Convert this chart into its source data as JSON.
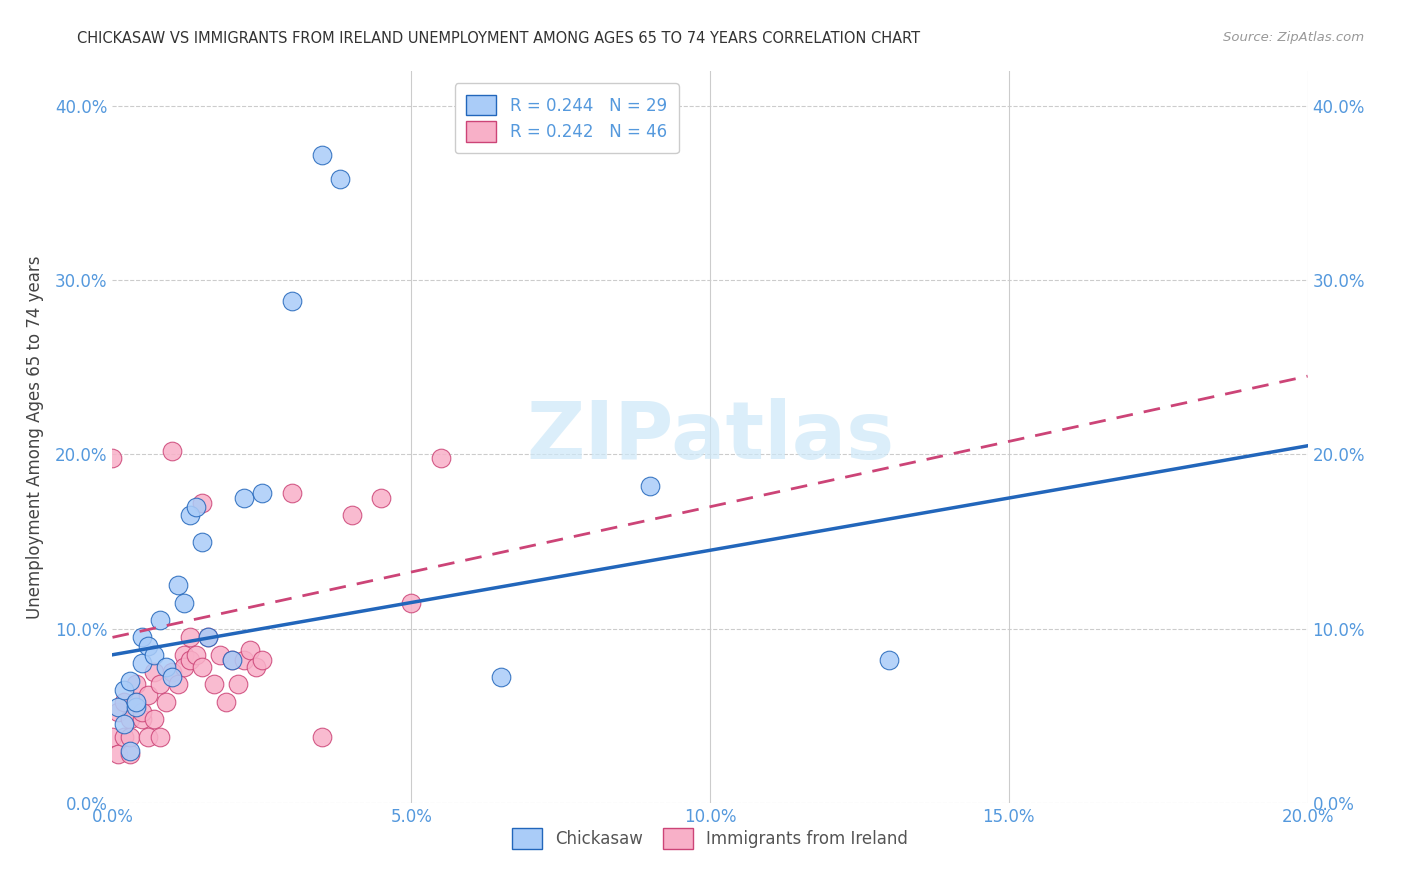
{
  "title": "CHICKASAW VS IMMIGRANTS FROM IRELAND UNEMPLOYMENT AMONG AGES 65 TO 74 YEARS CORRELATION CHART",
  "source": "Source: ZipAtlas.com",
  "tick_color": "#5599dd",
  "ylabel": "Unemployment Among Ages 65 to 74 years",
  "xlim": [
    0.0,
    0.2
  ],
  "ylim": [
    0.0,
    0.42
  ],
  "xtick_labels": [
    "0.0%",
    "5.0%",
    "10.0%",
    "15.0%",
    "20.0%"
  ],
  "ytick_labels": [
    "0.0%",
    "10.0%",
    "20.0%",
    "30.0%",
    "40.0%"
  ],
  "chickasaw_color": "#aaccf8",
  "ireland_color": "#f8b0c8",
  "chickasaw_line_color": "#2266bb",
  "ireland_line_color": "#cc4477",
  "watermark_text": "ZIPatlas",
  "watermark_color": "#cde8f8",
  "background_color": "#ffffff",
  "grid_color": "#cccccc",
  "chickasaw_scatter": [
    [
      0.001,
      0.055
    ],
    [
      0.002,
      0.045
    ],
    [
      0.002,
      0.065
    ],
    [
      0.003,
      0.03
    ],
    [
      0.003,
      0.07
    ],
    [
      0.004,
      0.055
    ],
    [
      0.004,
      0.058
    ],
    [
      0.005,
      0.08
    ],
    [
      0.005,
      0.095
    ],
    [
      0.006,
      0.09
    ],
    [
      0.007,
      0.085
    ],
    [
      0.008,
      0.105
    ],
    [
      0.009,
      0.078
    ],
    [
      0.01,
      0.072
    ],
    [
      0.011,
      0.125
    ],
    [
      0.012,
      0.115
    ],
    [
      0.013,
      0.165
    ],
    [
      0.014,
      0.17
    ],
    [
      0.015,
      0.15
    ],
    [
      0.016,
      0.095
    ],
    [
      0.02,
      0.082
    ],
    [
      0.022,
      0.175
    ],
    [
      0.025,
      0.178
    ],
    [
      0.03,
      0.288
    ],
    [
      0.035,
      0.372
    ],
    [
      0.038,
      0.358
    ],
    [
      0.065,
      0.072
    ],
    [
      0.09,
      0.182
    ],
    [
      0.13,
      0.082
    ]
  ],
  "ireland_scatter": [
    [
      0.0,
      0.038
    ],
    [
      0.001,
      0.028
    ],
    [
      0.001,
      0.052
    ],
    [
      0.002,
      0.038
    ],
    [
      0.002,
      0.058
    ],
    [
      0.003,
      0.028
    ],
    [
      0.003,
      0.048
    ],
    [
      0.003,
      0.038
    ],
    [
      0.004,
      0.058
    ],
    [
      0.004,
      0.068
    ],
    [
      0.005,
      0.048
    ],
    [
      0.005,
      0.052
    ],
    [
      0.006,
      0.038
    ],
    [
      0.006,
      0.062
    ],
    [
      0.007,
      0.048
    ],
    [
      0.007,
      0.075
    ],
    [
      0.008,
      0.038
    ],
    [
      0.008,
      0.068
    ],
    [
      0.009,
      0.058
    ],
    [
      0.01,
      0.075
    ],
    [
      0.011,
      0.068
    ],
    [
      0.012,
      0.085
    ],
    [
      0.012,
      0.078
    ],
    [
      0.013,
      0.095
    ],
    [
      0.013,
      0.082
    ],
    [
      0.014,
      0.085
    ],
    [
      0.015,
      0.078
    ],
    [
      0.016,
      0.095
    ],
    [
      0.017,
      0.068
    ],
    [
      0.018,
      0.085
    ],
    [
      0.019,
      0.058
    ],
    [
      0.02,
      0.082
    ],
    [
      0.021,
      0.068
    ],
    [
      0.022,
      0.082
    ],
    [
      0.023,
      0.088
    ],
    [
      0.024,
      0.078
    ],
    [
      0.025,
      0.082
    ],
    [
      0.0,
      0.198
    ],
    [
      0.01,
      0.202
    ],
    [
      0.015,
      0.172
    ],
    [
      0.03,
      0.178
    ],
    [
      0.035,
      0.038
    ],
    [
      0.04,
      0.165
    ],
    [
      0.045,
      0.175
    ],
    [
      0.05,
      0.115
    ],
    [
      0.055,
      0.198
    ]
  ],
  "chickasaw_reg": [
    0.0,
    0.2,
    0.085,
    0.205
  ],
  "ireland_reg": [
    0.0,
    0.2,
    0.095,
    0.245
  ]
}
